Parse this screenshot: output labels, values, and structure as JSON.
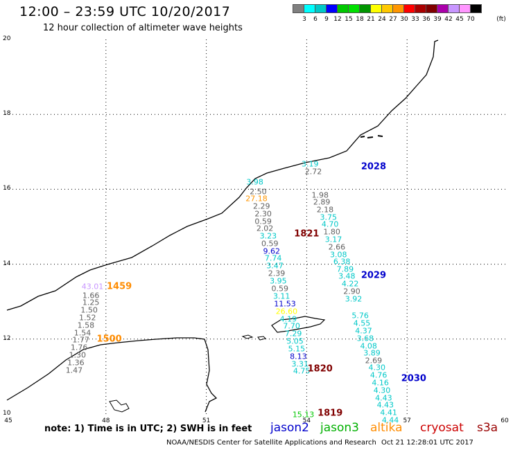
{
  "header": {
    "title": "12:00 – 23:59 UTC 10/20/2017",
    "subtitle": "12 hour collection of altimeter wave heights"
  },
  "colorbar": {
    "unit": "(ft)",
    "colors": [
      "#808080",
      "#00ffff",
      "#00c8c8",
      "#0000ff",
      "#00c800",
      "#00e000",
      "#009600",
      "#ffff00",
      "#ffc800",
      "#ff9600",
      "#ff0000",
      "#aa0000",
      "#800000",
      "#aa00aa",
      "#c896ff",
      "#ff96ff",
      "#000000"
    ],
    "labels": [
      "3",
      "6",
      "9",
      "12",
      "15",
      "18",
      "21",
      "24",
      "27",
      "30",
      "33",
      "36",
      "39",
      "42",
      "45",
      "70"
    ]
  },
  "axes": {
    "x_ticks": [
      "45",
      "48",
      "51",
      "54",
      "57",
      "60"
    ],
    "y_ticks": [
      "20",
      "18",
      "16",
      "14",
      "12",
      "10"
    ]
  },
  "passes": [
    {
      "sat": "jason2",
      "time": "2028",
      "color": "#0000cc",
      "x": 56.0,
      "y": 16.6
    },
    {
      "sat": "jason2",
      "time": "2029",
      "color": "#0000cc",
      "x": 56.0,
      "y": 13.7
    },
    {
      "sat": "jason2",
      "time": "2030",
      "color": "#0000cc",
      "x": 57.2,
      "y": 10.95
    },
    {
      "sat": "cryosat",
      "time": "1821",
      "color": "#800000",
      "x": 54.0,
      "y": 14.8
    },
    {
      "sat": "cryosat",
      "time": "1820",
      "color": "#800000",
      "x": 54.4,
      "y": 11.2
    },
    {
      "sat": "cryosat",
      "time": "1819",
      "color": "#800000",
      "x": 54.7,
      "y": 10.02
    },
    {
      "sat": "altika",
      "time": "1459",
      "color": "#ff8c00",
      "x": 48.4,
      "y": 13.4
    },
    {
      "sat": "altika",
      "time": "1500",
      "color": "#ff8c00",
      "x": 48.1,
      "y": 12.0
    }
  ],
  "values": [
    {
      "v": "3.19",
      "c": "#00c8c8",
      "x": 54.1,
      "y": 16.68
    },
    {
      "v": "2.72",
      "c": "#606060",
      "x": 54.2,
      "y": 16.47
    },
    {
      "v": "1.98",
      "c": "#606060",
      "x": 54.4,
      "y": 15.85
    },
    {
      "v": "2.89",
      "c": "#606060",
      "x": 54.45,
      "y": 15.65
    },
    {
      "v": "2.18",
      "c": "#606060",
      "x": 54.55,
      "y": 15.45
    },
    {
      "v": "3.75",
      "c": "#00c8c8",
      "x": 54.65,
      "y": 15.25
    },
    {
      "v": "4.70",
      "c": "#00c8c8",
      "x": 54.7,
      "y": 15.06
    },
    {
      "v": "1.80",
      "c": "#606060",
      "x": 54.75,
      "y": 14.86
    },
    {
      "v": "3.17",
      "c": "#00c8c8",
      "x": 54.8,
      "y": 14.66
    },
    {
      "v": "2.66",
      "c": "#606060",
      "x": 54.9,
      "y": 14.46
    },
    {
      "v": "3.08",
      "c": "#00c8c8",
      "x": 54.95,
      "y": 14.26
    },
    {
      "v": "6.38",
      "c": "#00c8c8",
      "x": 55.05,
      "y": 14.06
    },
    {
      "v": "7.89",
      "c": "#00c8c8",
      "x": 55.15,
      "y": 13.86
    },
    {
      "v": "3.48",
      "c": "#00c8c8",
      "x": 55.2,
      "y": 13.67
    },
    {
      "v": "4.22",
      "c": "#00c8c8",
      "x": 55.3,
      "y": 13.47
    },
    {
      "v": "2.90",
      "c": "#606060",
      "x": 55.35,
      "y": 13.27
    },
    {
      "v": "3.92",
      "c": "#00c8c8",
      "x": 55.4,
      "y": 13.06
    },
    {
      "v": "5.76",
      "c": "#00c8c8",
      "x": 55.6,
      "y": 12.62
    },
    {
      "v": "4.55",
      "c": "#00c8c8",
      "x": 55.65,
      "y": 12.42
    },
    {
      "v": "4.37",
      "c": "#00c8c8",
      "x": 55.7,
      "y": 12.22
    },
    {
      "v": "3.68",
      "c": "#00c8c8",
      "x": 55.75,
      "y": 12.02
    },
    {
      "v": "4.08",
      "c": "#00c8c8",
      "x": 55.85,
      "y": 11.82
    },
    {
      "v": "3.89",
      "c": "#00c8c8",
      "x": 55.95,
      "y": 11.63
    },
    {
      "v": "2.69",
      "c": "#606060",
      "x": 56.0,
      "y": 11.43
    },
    {
      "v": "4.30",
      "c": "#00c8c8",
      "x": 56.1,
      "y": 11.23
    },
    {
      "v": "4.76",
      "c": "#00c8c8",
      "x": 56.15,
      "y": 11.03
    },
    {
      "v": "4.16",
      "c": "#00c8c8",
      "x": 56.2,
      "y": 10.83
    },
    {
      "v": "4.30",
      "c": "#00c8c8",
      "x": 56.25,
      "y": 10.63
    },
    {
      "v": "4.43",
      "c": "#00c8c8",
      "x": 56.3,
      "y": 10.43
    },
    {
      "v": "4.43",
      "c": "#00c8c8",
      "x": 56.35,
      "y": 10.24
    },
    {
      "v": "4.41",
      "c": "#00c8c8",
      "x": 56.45,
      "y": 10.04
    },
    {
      "v": "4.44",
      "c": "#00c8c8",
      "x": 56.5,
      "y": 9.84
    },
    {
      "v": "3.98",
      "c": "#00c8c8",
      "x": 52.45,
      "y": 16.2
    },
    {
      "v": "2.50",
      "c": "#606060",
      "x": 52.55,
      "y": 15.94
    },
    {
      "v": "27.18",
      "c": "#ff9600",
      "x": 52.5,
      "y": 15.74
    },
    {
      "v": "2.29",
      "c": "#606060",
      "x": 52.65,
      "y": 15.54
    },
    {
      "v": "2.30",
      "c": "#606060",
      "x": 52.7,
      "y": 15.34
    },
    {
      "v": "0.59",
      "c": "#606060",
      "x": 52.7,
      "y": 15.14
    },
    {
      "v": "2.02",
      "c": "#606060",
      "x": 52.75,
      "y": 14.95
    },
    {
      "v": "3.23",
      "c": "#00c8c8",
      "x": 52.85,
      "y": 14.75
    },
    {
      "v": "0.59",
      "c": "#606060",
      "x": 52.9,
      "y": 14.55
    },
    {
      "v": "9.62",
      "c": "#0000cc",
      "x": 52.95,
      "y": 14.35
    },
    {
      "v": "7.74",
      "c": "#00c8c8",
      "x": 53.0,
      "y": 14.15
    },
    {
      "v": "3.47",
      "c": "#00c8c8",
      "x": 53.05,
      "y": 13.95
    },
    {
      "v": "2.39",
      "c": "#606060",
      "x": 53.1,
      "y": 13.75
    },
    {
      "v": "3.95",
      "c": "#00c8c8",
      "x": 53.15,
      "y": 13.55
    },
    {
      "v": "0.59",
      "c": "#606060",
      "x": 53.2,
      "y": 13.35
    },
    {
      "v": "3.11",
      "c": "#00c8c8",
      "x": 53.25,
      "y": 13.15
    },
    {
      "v": "11.53",
      "c": "#0000cc",
      "x": 53.35,
      "y": 12.94
    },
    {
      "v": "26.60",
      "c": "#ffff00",
      "x": 53.4,
      "y": 12.73
    },
    {
      "v": "4.19",
      "c": "#00c8c8",
      "x": 53.45,
      "y": 12.54
    },
    {
      "v": "7.70",
      "c": "#00c8c8",
      "x": 53.55,
      "y": 12.34
    },
    {
      "v": "7.29",
      "c": "#00c8c8",
      "x": 53.6,
      "y": 12.14
    },
    {
      "v": "5.05",
      "c": "#00c8c8",
      "x": 53.65,
      "y": 11.94
    },
    {
      "v": "5.15",
      "c": "#00c8c8",
      "x": 53.7,
      "y": 11.74
    },
    {
      "v": "8.13",
      "c": "#0000cc",
      "x": 53.75,
      "y": 11.54
    },
    {
      "v": "3.31",
      "c": "#00c8c8",
      "x": 53.8,
      "y": 11.34
    },
    {
      "v": "4.75",
      "c": "#00c8c8",
      "x": 53.85,
      "y": 11.14
    },
    {
      "v": "15.13",
      "c": "#00c800",
      "x": 53.9,
      "y": 9.98
    },
    {
      "v": "43.01",
      "c": "#c896ff",
      "x": 47.6,
      "y": 13.4
    },
    {
      "v": "1.66",
      "c": "#606060",
      "x": 47.55,
      "y": 13.17
    },
    {
      "v": "1.25",
      "c": "#606060",
      "x": 47.55,
      "y": 12.97
    },
    {
      "v": "1.50",
      "c": "#606060",
      "x": 47.5,
      "y": 12.77
    },
    {
      "v": "1.52",
      "c": "#606060",
      "x": 47.45,
      "y": 12.57
    },
    {
      "v": "1.58",
      "c": "#606060",
      "x": 47.4,
      "y": 12.37
    },
    {
      "v": "1.54",
      "c": "#606060",
      "x": 47.3,
      "y": 12.17
    },
    {
      "v": "1.77",
      "c": "#606060",
      "x": 47.25,
      "y": 11.97
    },
    {
      "v": "1.76",
      "c": "#606060",
      "x": 47.2,
      "y": 11.77
    },
    {
      "v": "1.30",
      "c": "#606060",
      "x": 47.15,
      "y": 11.57
    },
    {
      "v": "1.36",
      "c": "#606060",
      "x": 47.1,
      "y": 11.37
    },
    {
      "v": "1.47",
      "c": "#606060",
      "x": 47.05,
      "y": 11.17
    }
  ],
  "footer": {
    "note": "note: 1) Time is in UTC; 2) SWH is in feet",
    "legend": [
      {
        "label": "jason2",
        "color": "#0000cc"
      },
      {
        "label": "jason3",
        "color": "#00b000"
      },
      {
        "label": "altika",
        "color": "#ff8c00"
      },
      {
        "label": "cryosat",
        "color": "#cc0000"
      },
      {
        "label": "s3a",
        "color": "#990000"
      }
    ],
    "credit": "NOAA/NESDIS Center for Satellite Applications and Research",
    "generated": "Oct 21 12:28:01 UTC 2017"
  }
}
